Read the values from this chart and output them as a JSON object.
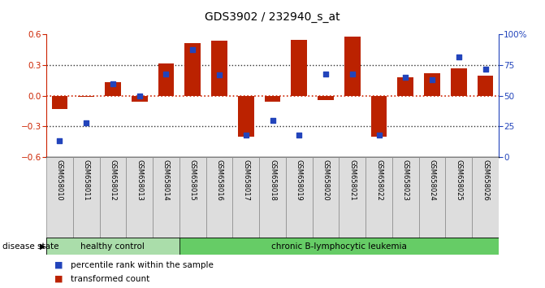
{
  "title": "GDS3902 / 232940_s_at",
  "samples": [
    "GSM658010",
    "GSM658011",
    "GSM658012",
    "GSM658013",
    "GSM658014",
    "GSM658015",
    "GSM658016",
    "GSM658017",
    "GSM658018",
    "GSM658019",
    "GSM658020",
    "GSM658021",
    "GSM658022",
    "GSM658023",
    "GSM658024",
    "GSM658025",
    "GSM658026"
  ],
  "bar_values": [
    -0.13,
    -0.01,
    0.13,
    -0.06,
    0.32,
    0.52,
    0.54,
    -0.4,
    -0.06,
    0.55,
    -0.04,
    0.58,
    -0.4,
    0.18,
    0.22,
    0.27,
    0.2
  ],
  "dot_values": [
    13,
    28,
    60,
    50,
    68,
    88,
    67,
    18,
    30,
    18,
    68,
    68,
    18,
    65,
    63,
    82,
    72
  ],
  "bar_color": "#bb2200",
  "dot_color": "#2244bb",
  "zero_line_color": "#cc2200",
  "dotted_line_color": "#333333",
  "groups": [
    {
      "label": "healthy control",
      "start": 0,
      "end": 5,
      "color": "#aaddaa"
    },
    {
      "label": "chronic B-lymphocytic leukemia",
      "start": 5,
      "end": 17,
      "color": "#66cc66"
    }
  ],
  "ylim": [
    -0.6,
    0.6
  ],
  "yticks": [
    -0.6,
    -0.3,
    0.0,
    0.3,
    0.6
  ],
  "y2ticks": [
    0,
    25,
    50,
    75,
    100
  ],
  "y2labels": [
    "0",
    "25",
    "50",
    "75",
    "100%"
  ],
  "hlines_dotted": [
    -0.3,
    0.3
  ],
  "hline_zero": 0.0,
  "disease_state_label": "disease state",
  "legend_bar_label": "transformed count",
  "legend_dot_label": "percentile rank within the sample",
  "background_color": "#ffffff",
  "left_axis_color": "#cc2200",
  "right_axis_color": "#2244bb",
  "label_bg_color": "#dddddd",
  "label_border_color": "#888888"
}
